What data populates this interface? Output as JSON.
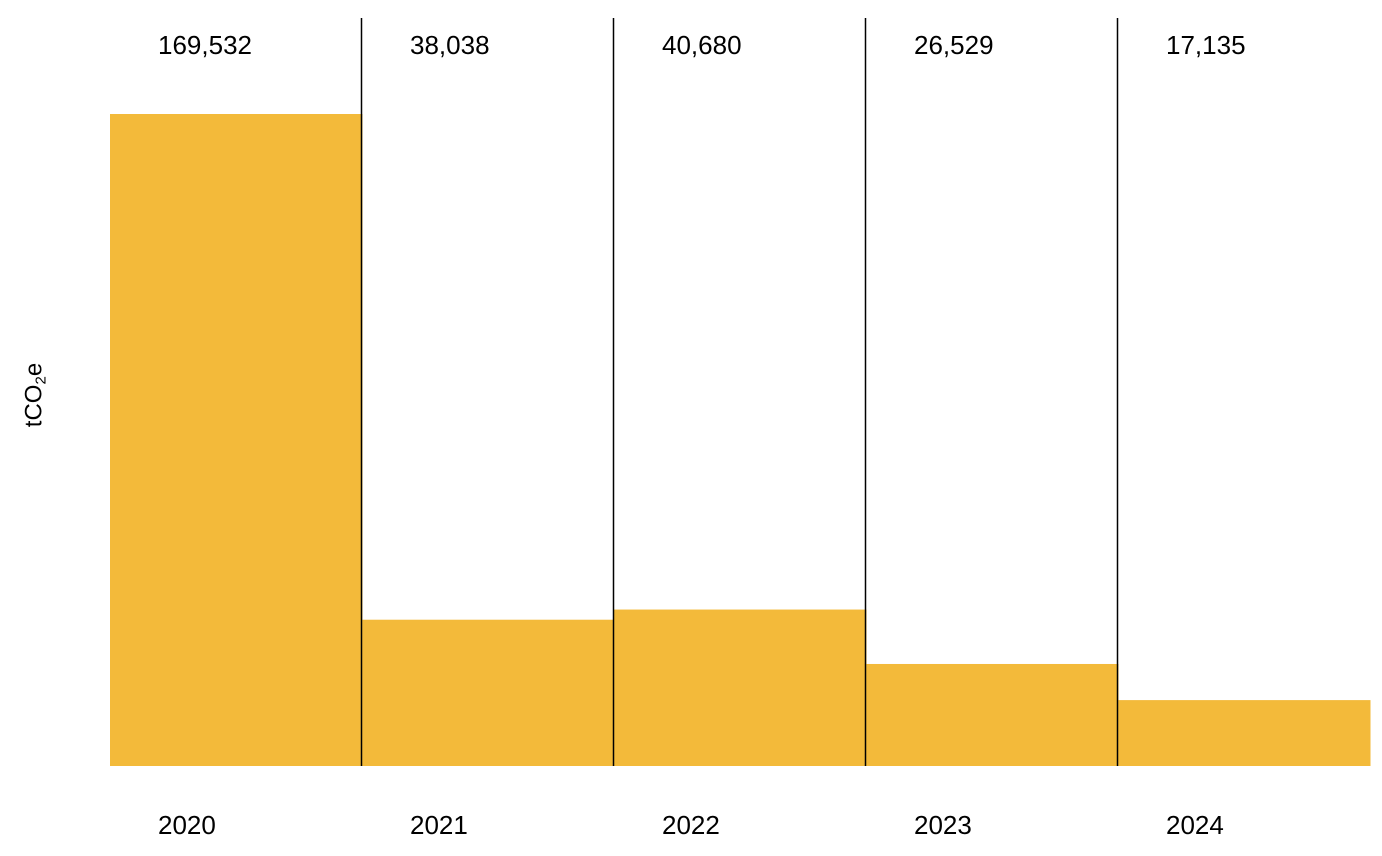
{
  "chart_data": {
    "type": "bar",
    "categories": [
      "2020",
      "2021",
      "2022",
      "2023",
      "2024"
    ],
    "values": [
      169532,
      38038,
      40680,
      26529,
      17135
    ],
    "value_labels": [
      "169,532",
      "38,038",
      "40,680",
      "26,529",
      "17,135"
    ],
    "title": "",
    "xlabel": "",
    "ylabel_main": "tCO",
    "ylabel_sub": "2",
    "ylabel_tail": "e",
    "ylim": [
      0,
      169532
    ],
    "grid": false,
    "legend": "none",
    "bar_color": "#F3BA3A",
    "divider_color": "#000000"
  }
}
